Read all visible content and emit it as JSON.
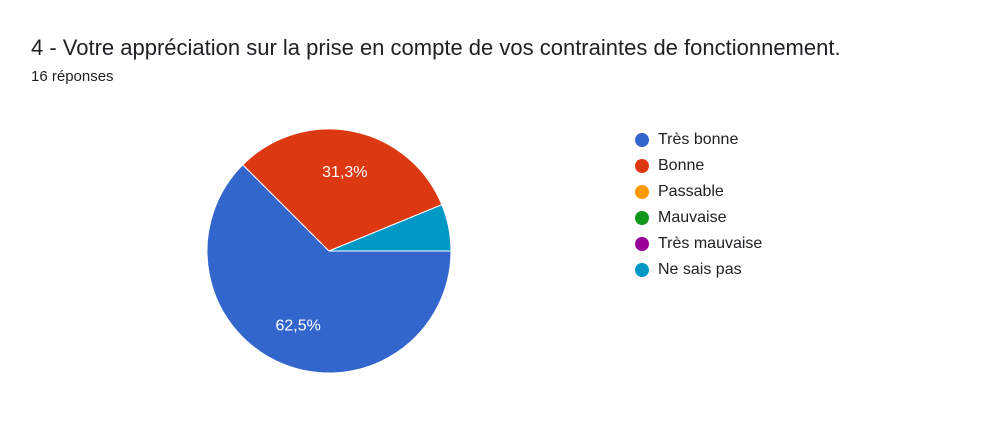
{
  "header": {
    "title": "4 - Votre appréciation sur la prise en compte de vos contraintes de fonctionnement.",
    "responses": "16 réponses"
  },
  "chart_data": {
    "type": "pie",
    "categories": [
      "Très bonne",
      "Bonne",
      "Passable",
      "Mauvaise",
      "Très mauvaise",
      "Ne sais pas"
    ],
    "values": [
      62.5,
      31.3,
      0,
      0,
      0,
      6.2
    ],
    "data_labels": [
      "62,5%",
      "31,3%",
      "",
      "",
      "",
      ""
    ],
    "colors": [
      "#3366cc",
      "#dc3912",
      "#ff9900",
      "#109618",
      "#990099",
      "#0099c6"
    ],
    "legend": "right"
  }
}
